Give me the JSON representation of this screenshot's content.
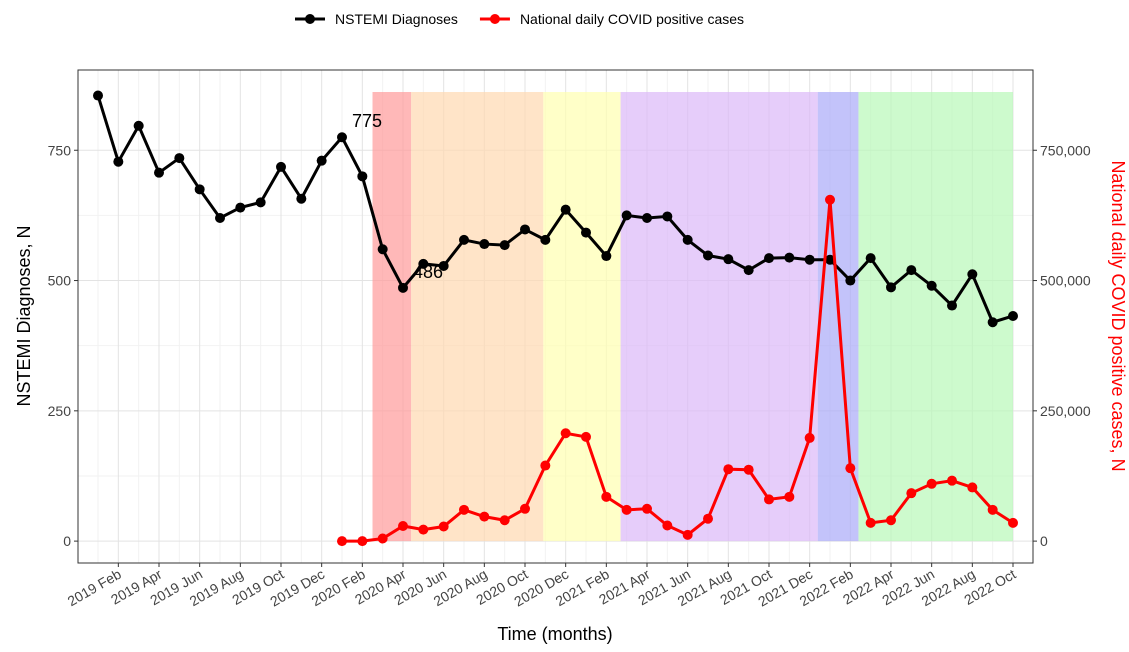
{
  "chart_data": {
    "type": "line",
    "xlabel": "Time (months)",
    "ylabel": "NSTEMI Diagnoses, N",
    "y2label": "National daily COVID positive cases, N",
    "categories": [
      null,
      "2019 Feb",
      null,
      "2019 Apr",
      null,
      "2019 Jun",
      null,
      "2019 Aug",
      null,
      "2019 Oct",
      null,
      "2019 Dec",
      null,
      "2020 Feb",
      null,
      "2020 Apr",
      null,
      "2020 Jun",
      null,
      "2020 Aug",
      null,
      "2020 Oct",
      null,
      "2020 Dec",
      null,
      "2021 Feb",
      null,
      "2021 Apr",
      null,
      "2021 Jun",
      null,
      "2021 Aug",
      null,
      "2021 Oct",
      null,
      "2021 Dec",
      null,
      "2022 Feb",
      null,
      "2022 Apr",
      null,
      "2022 Jun",
      null,
      "2022 Aug",
      null,
      "2022 Oct"
    ],
    "series": [
      {
        "name": "NSTEMI Diagnoses",
        "color": "#000000",
        "values": [
          855,
          728,
          797,
          707,
          735,
          675,
          620,
          640,
          650,
          718,
          657,
          730,
          775,
          700,
          560,
          486,
          532,
          528,
          578,
          570,
          568,
          598,
          578,
          636,
          592,
          547,
          625,
          620,
          623,
          578,
          548,
          541,
          520,
          543,
          544,
          540,
          540,
          500,
          543,
          487,
          520,
          490,
          452,
          512,
          420,
          432
        ]
      },
      {
        "name": "National daily COVID positive cases",
        "color": "#ff0000",
        "axis": "y2",
        "values": [
          null,
          null,
          null,
          null,
          null,
          null,
          null,
          null,
          null,
          null,
          null,
          null,
          0,
          0,
          5000,
          29000,
          22000,
          28000,
          60000,
          47000,
          40000,
          62000,
          145000,
          207000,
          200000,
          85000,
          60000,
          62000,
          30000,
          12000,
          43000,
          138000,
          137000,
          80000,
          85000,
          198000,
          655000,
          140000,
          35000,
          40000,
          92000,
          110000,
          116000,
          103000,
          60000,
          35000
        ]
      }
    ],
    "annotations": [
      {
        "text": "775",
        "index": 12,
        "value": 775
      },
      {
        "text": "486",
        "index": 15,
        "value": 486
      }
    ],
    "ylim": [
      -42,
      904
    ],
    "yticks": [
      0,
      250,
      500,
      750
    ],
    "y2lim": [
      -42000,
      904000
    ],
    "y2ticks": [
      0,
      {
        "value": 250000,
        "label": "250,000"
      },
      {
        "value": 500000,
        "label": "500,000"
      },
      {
        "value": 750000,
        "label": "750,000"
      }
    ],
    "grid": true,
    "legend": "top"
  }
}
